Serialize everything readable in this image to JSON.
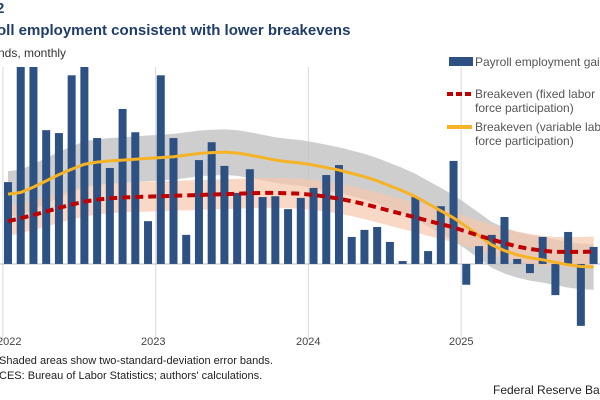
{
  "header": {
    "figure_number": "2",
    "title": "oll employment consistent with lower breakevens",
    "subtitle": "nds,  monthly"
  },
  "footer": {
    "note": "Shaded areas show two-standard-deviation error bands.",
    "source": "CES: Bureau of Labor Statistics; authors' calculations.",
    "brand": "Federal Reserve Bank"
  },
  "colors": {
    "bars": "#2e5184",
    "fixed": "#c00000",
    "variable": "#f5b325",
    "fixed_band": "#f6c9ae",
    "variable_band": "#bdbdbd"
  },
  "chart_data": {
    "type": "bar",
    "title": "Payroll employment consistent with lower breakevens",
    "xlabel": "",
    "ylabel": "thousands, monthly (estimated)",
    "ylim": [
      -183,
      474
    ],
    "grid": "vertical year lines",
    "legend_placement": "top-right",
    "x_ticks": [
      "2022",
      "2023",
      "2024",
      "2025"
    ],
    "start_month": "2022-01",
    "legend": [
      "Payroll employment gains",
      "Breakeven (fixed labor|force participation)",
      "Breakeven (variable labor|force participation)"
    ],
    "series": [
      {
        "name": "Payroll employment gains",
        "kind": "bar",
        "values": [
          197,
          500,
          500,
          322,
          315,
          454,
          500,
          303,
          231,
          373,
          317,
          103,
          454,
          303,
          70,
          250,
          293,
          236,
          171,
          228,
          161,
          163,
          132,
          159,
          183,
          214,
          238,
          65,
          82,
          89,
          53,
          7,
          161,
          31,
          139,
          248,
          -50,
          43,
          70,
          113,
          12,
          -22,
          65,
          -75,
          77,
          -149,
          41
        ]
      },
      {
        "name": "Breakeven (fixed labor force participation)",
        "kind": "line-dashed",
        "values": [
          103,
          110,
          118,
          126,
          135,
          143,
          150,
          155,
          158,
          160,
          161,
          162,
          163,
          164,
          165,
          166,
          167,
          168,
          169,
          170,
          171,
          171,
          170,
          169,
          166,
          162,
          157,
          151,
          144,
          136,
          128,
          120,
          112,
          104,
          96,
          88,
          78,
          68,
          59,
          50,
          42,
          36,
          32,
          29,
          29,
          29,
          30
        ],
        "band_halfwidth": 36
      },
      {
        "name": "Breakeven (variable labor force participation)",
        "kind": "line",
        "values": [
          168,
          172,
          185,
          200,
          215,
          228,
          240,
          245,
          248,
          250,
          252,
          254,
          256,
          258,
          262,
          266,
          268,
          269,
          267,
          262,
          256,
          250,
          246,
          243,
          238,
          232,
          226,
          218,
          210,
          200,
          188,
          176,
          162,
          145,
          128,
          111,
          90,
          68,
          46,
          32,
          22,
          15,
          10,
          4,
          -2,
          -6,
          -7
        ],
        "band_halfwidth": 55
      }
    ]
  }
}
